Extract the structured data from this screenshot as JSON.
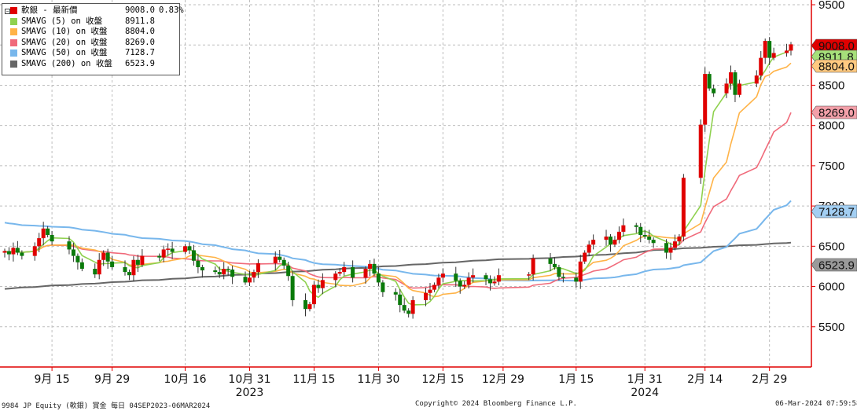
{
  "legend": {
    "rows": [
      {
        "label": "軟銀 - 最新價",
        "value": "9008.0",
        "change": "0.83%",
        "color": "#e00000"
      },
      {
        "label": "SMAVG (5)  on 收盤",
        "value": "8911.8",
        "color": "#8fd14f"
      },
      {
        "label": "SMAVG (10)  on 收盤",
        "value": "8804.0",
        "color": "#ffb347"
      },
      {
        "label": "SMAVG (20)  on 收盤",
        "value": "8269.0",
        "color": "#f06a7a"
      },
      {
        "label": "SMAVG (50)  on 收盤",
        "value": "7128.7",
        "color": "#78b7ec"
      },
      {
        "label": "SMAVG (200)  on 收盤",
        "value": "6523.9",
        "color": "#666666"
      }
    ]
  },
  "footer": {
    "left": "9984 JP Equity (軟銀) 賞金  每日 04SEP2023-06MAR2024",
    "center": "Copyright© 2024 Bloomberg Finance L.P.",
    "right": "06-Mar-2024 07:59:58"
  },
  "chart_data": {
    "type": "candlestick",
    "y_ticks": [
      5500,
      6000,
      6500,
      7000,
      7500,
      8000,
      8500,
      9000,
      9500
    ],
    "ylim": [
      5000,
      9500
    ],
    "x_ticks": [
      {
        "label": "9月 15",
        "date": "2023-09-15"
      },
      {
        "label": "9月 29",
        "date": "2023-09-29"
      },
      {
        "label": "10月 16",
        "date": "2023-10-16"
      },
      {
        "label": "10月 31",
        "date": "2023-10-31"
      },
      {
        "label": "11月 15",
        "date": "2023-11-15"
      },
      {
        "label": "11月 30",
        "date": "2023-11-30"
      },
      {
        "label": "12月 15",
        "date": "2023-12-15"
      },
      {
        "label": "12月 29",
        "date": "2023-12-29"
      },
      {
        "label": "1月 15",
        "date": "2024-01-15"
      },
      {
        "label": "1月 31",
        "date": "2024-01-31"
      },
      {
        "label": "2月 14",
        "date": "2024-02-14"
      },
      {
        "label": "2月 29",
        "date": "2024-02-29"
      }
    ],
    "year_labels": [
      {
        "label": "2023",
        "date": "2023-10-31"
      },
      {
        "label": "2024",
        "date": "2024-01-31"
      }
    ],
    "last_values": [
      {
        "value": "9008.0",
        "color": "#e00000",
        "text_color": "#ffffff"
      },
      {
        "value": "8911.8",
        "color": "#a6e07a",
        "text_color": "#111111"
      },
      {
        "value": "8804.0",
        "color": "#ffc980",
        "text_color": "#111111"
      },
      {
        "value": "8269.0",
        "color": "#f3a0a9",
        "text_color": "#111111"
      },
      {
        "value": "7128.7",
        "color": "#a3cff3",
        "text_color": "#111111"
      },
      {
        "value": "6523.9",
        "color": "#9a9a9a",
        "text_color": "#111111"
      }
    ],
    "dates": [
      "2023-09-04",
      "2023-09-05",
      "2023-09-06",
      "2023-09-07",
      "2023-09-08",
      "2023-09-11",
      "2023-09-12",
      "2023-09-13",
      "2023-09-14",
      "2023-09-15",
      "2023-09-19",
      "2023-09-20",
      "2023-09-21",
      "2023-09-22",
      "2023-09-25",
      "2023-09-26",
      "2023-09-27",
      "2023-09-28",
      "2023-09-29",
      "2023-10-02",
      "2023-10-03",
      "2023-10-04",
      "2023-10-05",
      "2023-10-06",
      "2023-10-10",
      "2023-10-11",
      "2023-10-12",
      "2023-10-13",
      "2023-10-16",
      "2023-10-17",
      "2023-10-18",
      "2023-10-19",
      "2023-10-20",
      "2023-10-23",
      "2023-10-24",
      "2023-10-25",
      "2023-10-26",
      "2023-10-27",
      "2023-10-30",
      "2023-10-31",
      "2023-11-01",
      "2023-11-02",
      "2023-11-06",
      "2023-11-07",
      "2023-11-08",
      "2023-11-09",
      "2023-11-10",
      "2023-11-13",
      "2023-11-14",
      "2023-11-15",
      "2023-11-16",
      "2023-11-17",
      "2023-11-20",
      "2023-11-21",
      "2023-11-22",
      "2023-11-24",
      "2023-11-27",
      "2023-11-28",
      "2023-11-29",
      "2023-11-30",
      "2023-12-01",
      "2023-12-04",
      "2023-12-05",
      "2023-12-06",
      "2023-12-07",
      "2023-12-08",
      "2023-12-11",
      "2023-12-12",
      "2023-12-13",
      "2023-12-14",
      "2023-12-15",
      "2023-12-18",
      "2023-12-19",
      "2023-12-20",
      "2023-12-21",
      "2023-12-22",
      "2023-12-25",
      "2023-12-26",
      "2023-12-27",
      "2023-12-28",
      "2024-01-04",
      "2024-01-05",
      "2024-01-09",
      "2024-01-10",
      "2024-01-11",
      "2024-01-12",
      "2024-01-15",
      "2024-01-16",
      "2024-01-17",
      "2024-01-18",
      "2024-01-19",
      "2024-01-22",
      "2024-01-23",
      "2024-01-24",
      "2024-01-25",
      "2024-01-26",
      "2024-01-29",
      "2024-01-30",
      "2024-01-31",
      "2024-02-01",
      "2024-02-02",
      "2024-02-05",
      "2024-02-06",
      "2024-02-07",
      "2024-02-08",
      "2024-02-09",
      "2024-02-13",
      "2024-02-14",
      "2024-02-15",
      "2024-02-16",
      "2024-02-19",
      "2024-02-20",
      "2024-02-21",
      "2024-02-22",
      "2024-02-26",
      "2024-02-27",
      "2024-02-28",
      "2024-02-29",
      "2024-03-01",
      "2024-03-04",
      "2024-03-05"
    ],
    "close": [
      6440,
      6400,
      6480,
      6420,
      6380,
      6500,
      6600,
      6720,
      6640,
      6560,
      6460,
      6380,
      6300,
      6220,
      6150,
      6330,
      6420,
      6310,
      6240,
      6180,
      6140,
      6330,
      6270,
      6380,
      6360,
      6460,
      6470,
      6430,
      6500,
      6450,
      6320,
      6240,
      6200,
      6180,
      6150,
      6220,
      6210,
      6120,
      6050,
      6110,
      6180,
      6290,
      6370,
      6330,
      6260,
      6130,
      5830,
      5720,
      5780,
      6020,
      5980,
      6080,
      6160,
      6180,
      6240,
      6110,
      6220,
      6280,
      6160,
      6050,
      5930,
      5900,
      5770,
      5700,
      5660,
      5830,
      5920,
      5960,
      6020,
      6110,
      6160,
      6070,
      6000,
      6020,
      6110,
      6140,
      6090,
      6040,
      6060,
      6140,
      6150,
      6350,
      6280,
      6240,
      6120,
      6110,
      6060,
      6310,
      6420,
      6520,
      6580,
      6620,
      6520,
      6580,
      6680,
      6760,
      6740,
      6640,
      6620,
      6580,
      6540,
      6420,
      6480,
      6560,
      6620,
      7350,
      8010,
      8640,
      8460,
      8400,
      8520,
      8660,
      8380,
      8520,
      8620,
      8840,
      9050,
      8840,
      8900,
      8930,
      9008
    ]
  }
}
